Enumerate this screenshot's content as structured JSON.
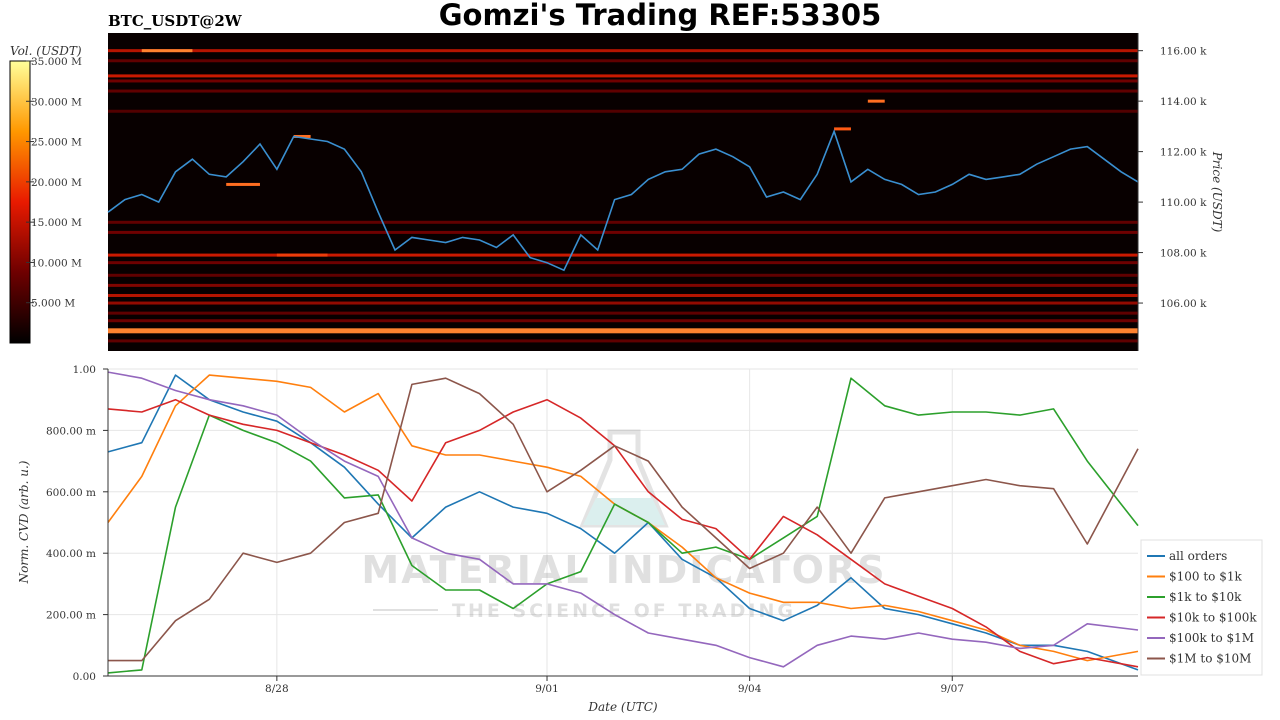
{
  "title": "Gomzi's Trading REF:53305",
  "pair_label": "BTC_USDT@2W",
  "watermark": {
    "line1": "MATERIAL INDICATORS",
    "line2": "THE SCIENCE OF TRADING"
  },
  "colors": {
    "price_line": "#3a8fd0",
    "heatmap_bg": "#080000",
    "series": [
      "#1f77b4",
      "#ff7f0e",
      "#2ca02c",
      "#d62728",
      "#9467bd",
      "#8c564b"
    ]
  },
  "chart_data": [
    {
      "type": "heatmap",
      "colorbar": {
        "label": "Vol. (USDT)",
        "ticks": [
          "35.000 M",
          "30.000 M",
          "25.000 M",
          "20.000 M",
          "15.000 M",
          "10.000 M",
          "5.000 M"
        ],
        "tick_values": [
          35,
          30,
          25,
          20,
          15,
          10,
          5
        ],
        "range": [
          0,
          35
        ]
      },
      "y_axis": {
        "label": "Price (USDT)",
        "ticks": [
          "116.00 k",
          "114.00 k",
          "112.00 k",
          "110.00 k",
          "108.00 k",
          "106.00 k"
        ],
        "tick_values": [
          116000,
          114000,
          112000,
          110000,
          108000,
          106000
        ],
        "range": [
          104100,
          116700
        ]
      },
      "x_range": [
        "2025-08-25 12:00",
        "2025-09-09 18:00"
      ],
      "price": {
        "x": [
          "2025-08-25 12:00",
          "2025-08-25 18:00",
          "2025-08-26 00:00",
          "2025-08-26 06:00",
          "2025-08-26 12:00",
          "2025-08-26 18:00",
          "2025-08-27 00:00",
          "2025-08-27 06:00",
          "2025-08-27 12:00",
          "2025-08-27 18:00",
          "2025-08-28 00:00",
          "2025-08-28 06:00",
          "2025-08-28 12:00",
          "2025-08-28 18:00",
          "2025-08-29 00:00",
          "2025-08-29 06:00",
          "2025-08-29 12:00",
          "2025-08-29 18:00",
          "2025-08-30 00:00",
          "2025-08-30 06:00",
          "2025-08-30 12:00",
          "2025-08-30 18:00",
          "2025-08-31 00:00",
          "2025-08-31 06:00",
          "2025-08-31 12:00",
          "2025-08-31 18:00",
          "2025-09-01 00:00",
          "2025-09-01 06:00",
          "2025-09-01 12:00",
          "2025-09-01 18:00",
          "2025-09-02 00:00",
          "2025-09-02 06:00",
          "2025-09-02 12:00",
          "2025-09-02 18:00",
          "2025-09-03 00:00",
          "2025-09-03 06:00",
          "2025-09-03 12:00",
          "2025-09-03 18:00",
          "2025-09-04 00:00",
          "2025-09-04 06:00",
          "2025-09-04 12:00",
          "2025-09-04 18:00",
          "2025-09-05 00:00",
          "2025-09-05 06:00",
          "2025-09-05 12:00",
          "2025-09-05 18:00",
          "2025-09-06 00:00",
          "2025-09-06 06:00",
          "2025-09-06 12:00",
          "2025-09-06 18:00",
          "2025-09-07 00:00",
          "2025-09-07 06:00",
          "2025-09-07 12:00",
          "2025-09-07 18:00",
          "2025-09-08 00:00",
          "2025-09-08 06:00",
          "2025-09-08 12:00",
          "2025-09-08 18:00",
          "2025-09-09 00:00",
          "2025-09-09 06:00",
          "2025-09-09 12:00",
          "2025-09-09 18:00"
        ],
        "y": [
          109600,
          110100,
          110300,
          110000,
          111200,
          111700,
          111100,
          111000,
          111600,
          112300,
          111300,
          112600,
          112500,
          112400,
          112100,
          111200,
          109600,
          108100,
          108600,
          108500,
          108400,
          108600,
          108500,
          108200,
          108700,
          107800,
          107600,
          107300,
          108700,
          108100,
          110100,
          110300,
          110900,
          111200,
          111300,
          111900,
          112100,
          111800,
          111400,
          110200,
          110400,
          110100,
          111100,
          112800,
          110800,
          111300,
          110900,
          110700,
          110300,
          110400,
          110700,
          111100,
          110900,
          111000,
          111100,
          111500,
          111800,
          112100,
          112200,
          111700,
          111200,
          110800
        ]
      },
      "levels": [
        {
          "price": 116000,
          "strength": 0.55
        },
        {
          "price": 115600,
          "strength": 0.3
        },
        {
          "price": 115000,
          "strength": 0.6
        },
        {
          "price": 114800,
          "strength": 0.35
        },
        {
          "price": 114400,
          "strength": 0.3
        },
        {
          "price": 113600,
          "strength": 0.25
        },
        {
          "price": 109200,
          "strength": 0.3
        },
        {
          "price": 108800,
          "strength": 0.35
        },
        {
          "price": 107900,
          "strength": 0.6
        },
        {
          "price": 107600,
          "strength": 0.35
        },
        {
          "price": 107100,
          "strength": 0.3
        },
        {
          "price": 106700,
          "strength": 0.4
        },
        {
          "price": 106300,
          "strength": 0.55
        },
        {
          "price": 106000,
          "strength": 0.45
        },
        {
          "price": 105600,
          "strength": 0.3
        },
        {
          "price": 105300,
          "strength": 0.35
        },
        {
          "price": 104900,
          "strength": 0.95
        },
        {
          "price": 104500,
          "strength": 0.3
        }
      ],
      "level_segments": [
        {
          "start": "2025-08-26 00:00",
          "end": "2025-08-26 18:00",
          "price": 116000,
          "strength": 0.95
        },
        {
          "start": "2025-08-27 06:00",
          "end": "2025-08-27 18:00",
          "price": 110700,
          "strength": 0.9
        },
        {
          "start": "2025-08-28 06:00",
          "end": "2025-08-28 12:00",
          "price": 112600,
          "strength": 0.9
        },
        {
          "start": "2025-08-28 00:00",
          "end": "2025-08-28 18:00",
          "price": 107900,
          "strength": 0.75
        },
        {
          "start": "2025-09-05 18:00",
          "end": "2025-09-06 00:00",
          "price": 114000,
          "strength": 0.9
        },
        {
          "start": "2025-09-05 06:00",
          "end": "2025-09-05 12:00",
          "price": 112900,
          "strength": 0.85
        }
      ]
    },
    {
      "type": "line",
      "ylabel": "Norm. CVD (arb. u.)",
      "xlabel": "Date (UTC)",
      "ylim": [
        0,
        1
      ],
      "y_ticks": [
        "1.00",
        "800.00 m",
        "600.00 m",
        "400.00 m",
        "200.00 m",
        "0.00"
      ],
      "y_tick_values": [
        1,
        0.8,
        0.6,
        0.4,
        0.2,
        0
      ],
      "x_ticks": [
        "8/28",
        "9/01",
        "9/04",
        "9/07"
      ],
      "x_tick_values": [
        "2025-08-28 00:00",
        "2025-09-01 00:00",
        "2025-09-04 00:00",
        "2025-09-07 00:00"
      ],
      "x_range": [
        "2025-08-25 12:00",
        "2025-09-09 18:00"
      ],
      "x": [
        "2025-08-25 12:00",
        "2025-08-26 00:00",
        "2025-08-26 12:00",
        "2025-08-27 00:00",
        "2025-08-27 12:00",
        "2025-08-28 00:00",
        "2025-08-28 12:00",
        "2025-08-29 00:00",
        "2025-08-29 12:00",
        "2025-08-30 00:00",
        "2025-08-30 12:00",
        "2025-08-31 00:00",
        "2025-08-31 12:00",
        "2025-09-01 00:00",
        "2025-09-01 12:00",
        "2025-09-02 00:00",
        "2025-09-02 12:00",
        "2025-09-03 00:00",
        "2025-09-03 12:00",
        "2025-09-04 00:00",
        "2025-09-04 12:00",
        "2025-09-05 00:00",
        "2025-09-05 12:00",
        "2025-09-06 00:00",
        "2025-09-06 12:00",
        "2025-09-07 00:00",
        "2025-09-07 12:00",
        "2025-09-08 00:00",
        "2025-09-08 12:00",
        "2025-09-09 00:00",
        "2025-09-09 18:00"
      ],
      "legend": "right",
      "series": [
        {
          "name": "all orders",
          "values": [
            0.73,
            0.76,
            0.98,
            0.9,
            0.86,
            0.83,
            0.76,
            0.68,
            0.56,
            0.45,
            0.55,
            0.6,
            0.55,
            0.53,
            0.48,
            0.4,
            0.5,
            0.38,
            0.32,
            0.22,
            0.18,
            0.23,
            0.32,
            0.22,
            0.2,
            0.17,
            0.14,
            0.1,
            0.1,
            0.08,
            0.02
          ]
        },
        {
          "name": "$100 to $1k",
          "values": [
            0.5,
            0.65,
            0.88,
            0.98,
            0.97,
            0.96,
            0.94,
            0.86,
            0.92,
            0.75,
            0.72,
            0.72,
            0.7,
            0.68,
            0.65,
            0.56,
            0.5,
            0.42,
            0.32,
            0.27,
            0.24,
            0.24,
            0.22,
            0.23,
            0.21,
            0.18,
            0.15,
            0.1,
            0.08,
            0.05,
            0.08
          ]
        },
        {
          "name": "$1k to $10k",
          "values": [
            0.01,
            0.02,
            0.55,
            0.85,
            0.8,
            0.76,
            0.7,
            0.58,
            0.59,
            0.36,
            0.28,
            0.28,
            0.22,
            0.3,
            0.34,
            0.56,
            0.5,
            0.4,
            0.42,
            0.38,
            0.45,
            0.52,
            0.97,
            0.88,
            0.85,
            0.86,
            0.86,
            0.85,
            0.87,
            0.7,
            0.49
          ]
        },
        {
          "name": "$10k to $100k",
          "values": [
            0.87,
            0.86,
            0.9,
            0.85,
            0.82,
            0.8,
            0.76,
            0.72,
            0.67,
            0.57,
            0.76,
            0.8,
            0.86,
            0.9,
            0.84,
            0.75,
            0.6,
            0.51,
            0.48,
            0.38,
            0.52,
            0.46,
            0.38,
            0.3,
            0.26,
            0.22,
            0.16,
            0.08,
            0.04,
            0.06,
            0.03
          ]
        },
        {
          "name": "$100k to $1M",
          "values": [
            0.99,
            0.97,
            0.93,
            0.9,
            0.88,
            0.85,
            0.77,
            0.7,
            0.65,
            0.45,
            0.4,
            0.38,
            0.3,
            0.3,
            0.27,
            0.2,
            0.14,
            0.12,
            0.1,
            0.06,
            0.03,
            0.1,
            0.13,
            0.12,
            0.14,
            0.12,
            0.11,
            0.09,
            0.1,
            0.17,
            0.15
          ]
        },
        {
          "name": "$1M to $10M",
          "values": [
            0.05,
            0.05,
            0.18,
            0.25,
            0.4,
            0.37,
            0.4,
            0.5,
            0.53,
            0.95,
            0.97,
            0.92,
            0.82,
            0.6,
            0.67,
            0.75,
            0.7,
            0.55,
            0.45,
            0.35,
            0.4,
            0.55,
            0.4,
            0.58,
            0.6,
            0.62,
            0.64,
            0.62,
            0.61,
            0.43,
            0.74
          ]
        }
      ]
    }
  ]
}
